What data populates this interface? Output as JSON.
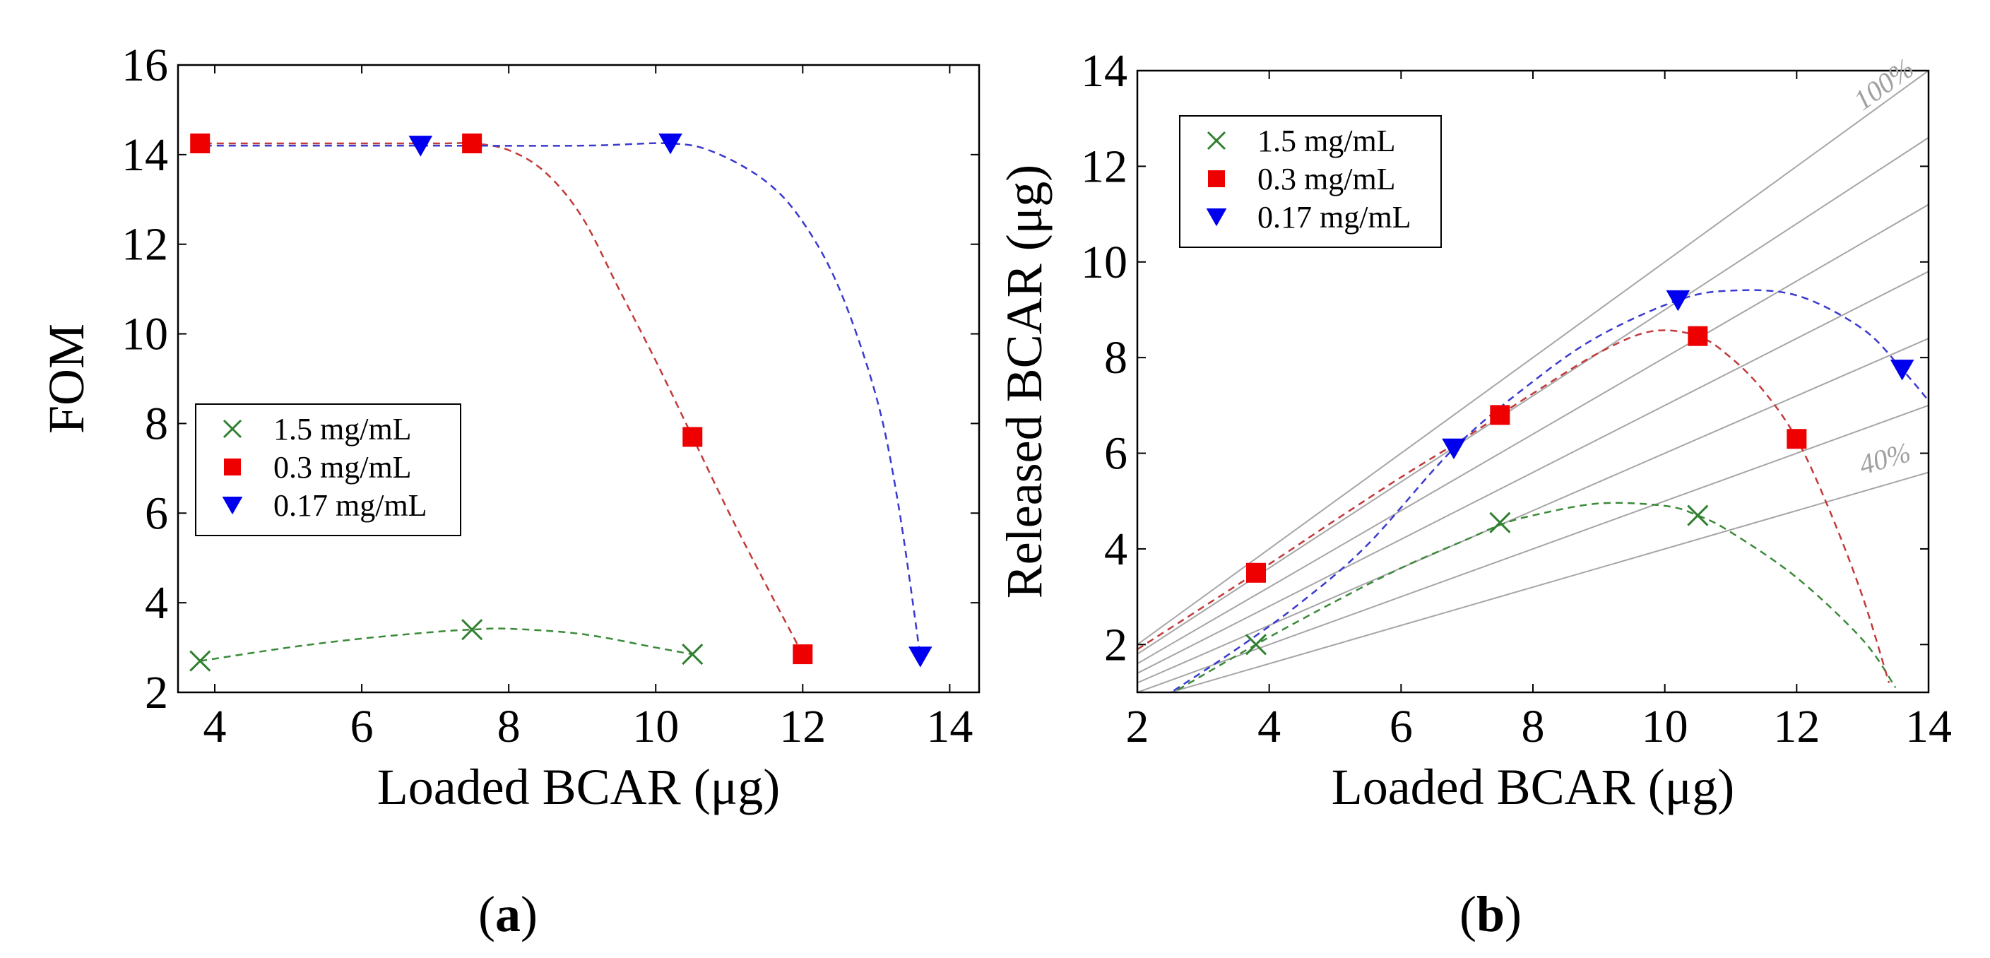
{
  "colors": {
    "series_15": "#2f7f2f",
    "series_03": "#ee0000",
    "series_017": "#0000ee",
    "fit_15": "#3a8a3a",
    "fit_03": "#c23a3a",
    "fit_017": "#3a3ad0",
    "ref_line": "#a6a6a6"
  },
  "chart_data": [
    {
      "type": "scatter",
      "panel_label": "(a)",
      "panel_letter": "a",
      "title": "",
      "xlabel": "Loaded BCAR (μg)",
      "ylabel": "FOM",
      "xlim": [
        3.5,
        14.4
      ],
      "ylim": [
        2,
        16
      ],
      "xticks": [
        4,
        6,
        8,
        10,
        12,
        14
      ],
      "yticks": [
        2,
        4,
        6,
        8,
        10,
        12,
        14,
        16
      ],
      "legend_position": "center-left",
      "series": [
        {
          "name": "1.5 mg/mL",
          "marker": "x",
          "x": [
            3.8,
            7.5,
            10.5
          ],
          "y": [
            2.7,
            3.4,
            2.85
          ],
          "fit_x": [
            3.8,
            5.0,
            6.0,
            7.0,
            7.5,
            8.0,
            9.0,
            10.0,
            10.5
          ],
          "fit_y": [
            2.7,
            3.0,
            3.2,
            3.35,
            3.4,
            3.42,
            3.3,
            3.0,
            2.85
          ]
        },
        {
          "name": "0.3 mg/mL",
          "marker": "square",
          "x": [
            3.8,
            7.5,
            10.5,
            12.0
          ],
          "y": [
            14.25,
            14.25,
            7.7,
            2.85
          ],
          "fit_x": [
            3.7,
            5.0,
            7.0,
            7.5,
            8.0,
            8.5,
            9.0,
            9.5,
            10.0,
            10.5,
            11.0,
            11.5,
            12.0
          ],
          "fit_y": [
            14.25,
            14.25,
            14.25,
            14.25,
            14.1,
            13.6,
            12.6,
            11.0,
            9.4,
            7.7,
            6.0,
            4.4,
            2.85
          ]
        },
        {
          "name": "0.17 mg/mL",
          "marker": "triangle-down",
          "x": [
            6.8,
            10.2,
            13.6
          ],
          "y": [
            14.2,
            14.25,
            2.8
          ],
          "fit_x": [
            3.7,
            6.8,
            9.0,
            10.2,
            10.8,
            11.5,
            12.0,
            12.5,
            13.0,
            13.3,
            13.6
          ],
          "fit_y": [
            14.2,
            14.2,
            14.2,
            14.25,
            14.05,
            13.4,
            12.5,
            11.0,
            8.6,
            6.2,
            2.8
          ]
        }
      ]
    },
    {
      "type": "scatter",
      "panel_label": "(b)",
      "panel_letter": "b",
      "title": "",
      "xlabel": "Loaded BCAR (μg)",
      "ylabel": "Released BCAR (μg)",
      "xlim": [
        2,
        14
      ],
      "ylim": [
        1,
        14
      ],
      "xticks": [
        2,
        4,
        6,
        8,
        10,
        12,
        14
      ],
      "yticks": [
        2,
        4,
        6,
        8,
        10,
        12,
        14
      ],
      "legend_position": "top-left",
      "reference_lines": {
        "fractions": [
          1.0,
          0.9,
          0.8,
          0.7,
          0.6,
          0.5,
          0.4
        ],
        "labels": [
          {
            "text": "100%",
            "fraction": 1.0
          },
          {
            "text": "40%",
            "fraction": 0.4
          }
        ]
      },
      "series": [
        {
          "name": "1.5 mg/mL",
          "marker": "x",
          "x": [
            3.8,
            7.5,
            10.5
          ],
          "y": [
            2.0,
            4.55,
            4.7
          ],
          "fit_x": [
            2.3,
            3.8,
            5.0,
            6.0,
            7.0,
            7.5,
            8.0,
            9.0,
            10.0,
            10.5,
            11.0,
            12.0,
            13.0,
            13.5
          ],
          "fit_y": [
            0.8,
            2.0,
            2.9,
            3.6,
            4.2,
            4.5,
            4.7,
            4.95,
            4.9,
            4.7,
            4.35,
            3.4,
            2.1,
            1.1
          ]
        },
        {
          "name": "0.3 mg/mL",
          "marker": "square",
          "x": [
            3.8,
            7.5,
            10.5,
            12.0
          ],
          "y": [
            3.5,
            6.8,
            8.45,
            6.3
          ],
          "fit_x": [
            2.0,
            3.8,
            5.0,
            6.0,
            7.0,
            7.5,
            8.0,
            9.0,
            9.8,
            10.5,
            11.0,
            11.5,
            12.0,
            12.5,
            13.0,
            13.4
          ],
          "fit_y": [
            1.9,
            3.5,
            4.6,
            5.5,
            6.35,
            6.8,
            7.25,
            8.1,
            8.55,
            8.45,
            8.0,
            7.3,
            6.3,
            4.8,
            3.0,
            1.2
          ]
        },
        {
          "name": "0.17 mg/mL",
          "marker": "triangle-down",
          "x": [
            6.8,
            10.2,
            13.6
          ],
          "y": [
            6.1,
            9.2,
            7.75
          ],
          "fit_x": [
            2.4,
            3.5,
            4.5,
            5.5,
            6.8,
            8.0,
            9.0,
            10.2,
            11.0,
            12.0,
            13.0,
            13.6,
            14.0
          ],
          "fit_y": [
            0.9,
            1.9,
            2.9,
            4.1,
            6.1,
            7.5,
            8.45,
            9.2,
            9.4,
            9.3,
            8.6,
            7.75,
            7.1
          ]
        }
      ]
    }
  ]
}
